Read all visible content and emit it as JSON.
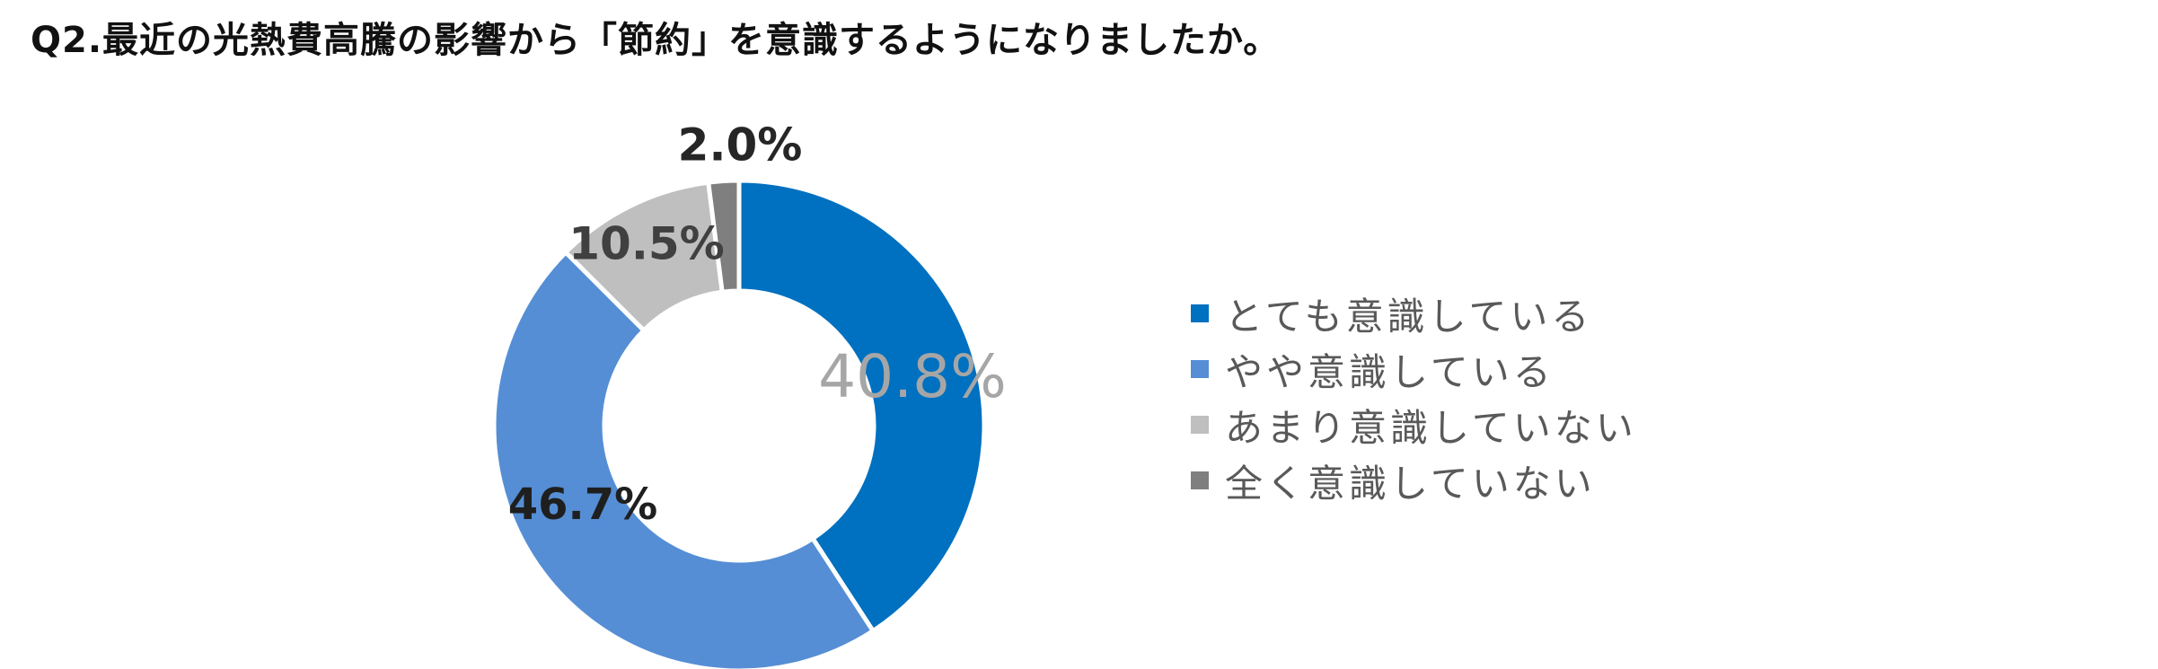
{
  "chart_data": {
    "type": "pie",
    "title": "Q2.最近の光熱費高騰の影響から「節約」を意識するようになりましたか。",
    "categories": [
      "とても意識している",
      "やや意識している",
      "あまり意識していない",
      "全く意識していない"
    ],
    "values": [
      40.8,
      46.7,
      10.5,
      2.0
    ],
    "value_labels": [
      "40.8%",
      "46.7%",
      "10.5%",
      "2.0%"
    ],
    "colors": [
      "#0070C0",
      "#558ED5",
      "#BFBFBF",
      "#7F7F7F"
    ],
    "label_colors": [
      "#A6A6A6",
      "#1F1F1F",
      "#404040",
      "#262626"
    ],
    "legend_placement": "right",
    "style": "donut"
  }
}
